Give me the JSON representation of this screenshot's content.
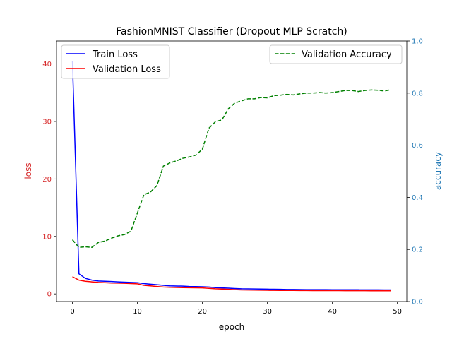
{
  "chart_data": {
    "type": "line",
    "title": "FashionMNIST Classifier (Dropout MLP Scratch)",
    "xlabel": "epoch",
    "ylabel_left": "loss",
    "ylabel_right": "accuracy",
    "xlim": [
      -2.45,
      51.45
    ],
    "ylim_left": [
      -1.33,
      44
    ],
    "ylim_right": [
      0,
      1.0
    ],
    "xticks": [
      0,
      10,
      20,
      30,
      40,
      50
    ],
    "yticks_left": [
      0,
      10,
      20,
      30,
      40
    ],
    "yticks_right": [
      0.0,
      0.2,
      0.4,
      0.6,
      0.8,
      1.0
    ],
    "grid": false,
    "legend_left_position": "upper-left",
    "legend_right_position": "upper-right",
    "colors": {
      "train_loss": "#0000ff",
      "val_loss": "#ff0000",
      "val_acc": "#008000",
      "left_axis": "#d62728",
      "right_axis": "#1f77b4"
    },
    "x": [
      0,
      1,
      2,
      3,
      4,
      5,
      6,
      7,
      8,
      9,
      10,
      11,
      12,
      13,
      14,
      15,
      16,
      17,
      18,
      19,
      20,
      21,
      22,
      23,
      24,
      25,
      26,
      27,
      28,
      29,
      30,
      31,
      32,
      33,
      34,
      35,
      36,
      37,
      38,
      39,
      40,
      41,
      42,
      43,
      44,
      45,
      46,
      47,
      48,
      49
    ],
    "series": [
      {
        "name": "Train Loss",
        "axis": "left",
        "style": "solid",
        "values": [
          40.5,
          3.5,
          2.7,
          2.4,
          2.25,
          2.2,
          2.15,
          2.1,
          2.05,
          2.0,
          1.95,
          1.8,
          1.7,
          1.6,
          1.5,
          1.4,
          1.38,
          1.35,
          1.3,
          1.28,
          1.25,
          1.2,
          1.1,
          1.05,
          1.0,
          0.95,
          0.9,
          0.88,
          0.86,
          0.85,
          0.83,
          0.82,
          0.8,
          0.78,
          0.77,
          0.76,
          0.75,
          0.75,
          0.74,
          0.74,
          0.73,
          0.73,
          0.72,
          0.72,
          0.72,
          0.71,
          0.71,
          0.71,
          0.7,
          0.7
        ]
      },
      {
        "name": "Validation Loss",
        "axis": "left",
        "style": "solid",
        "values": [
          3.0,
          2.4,
          2.2,
          2.1,
          2.0,
          1.95,
          1.9,
          1.88,
          1.85,
          1.8,
          1.75,
          1.5,
          1.4,
          1.3,
          1.2,
          1.15,
          1.12,
          1.1,
          1.08,
          1.06,
          1.05,
          0.98,
          0.9,
          0.85,
          0.8,
          0.75,
          0.7,
          0.68,
          0.66,
          0.65,
          0.63,
          0.62,
          0.61,
          0.6,
          0.6,
          0.59,
          0.59,
          0.58,
          0.58,
          0.57,
          0.57,
          0.57,
          0.56,
          0.56,
          0.56,
          0.56,
          0.55,
          0.55,
          0.55,
          0.55
        ]
      },
      {
        "name": "Validation Accuracy",
        "axis": "right",
        "style": "dashed",
        "values": [
          0.237,
          0.208,
          0.21,
          0.208,
          0.227,
          0.232,
          0.243,
          0.252,
          0.257,
          0.27,
          0.34,
          0.41,
          0.42,
          0.445,
          0.52,
          0.532,
          0.54,
          0.55,
          0.555,
          0.562,
          0.585,
          0.665,
          0.69,
          0.697,
          0.74,
          0.762,
          0.77,
          0.778,
          0.778,
          0.783,
          0.782,
          0.79,
          0.792,
          0.795,
          0.793,
          0.797,
          0.8,
          0.8,
          0.802,
          0.8,
          0.802,
          0.806,
          0.81,
          0.81,
          0.806,
          0.81,
          0.812,
          0.811,
          0.808,
          0.813
        ]
      }
    ]
  }
}
